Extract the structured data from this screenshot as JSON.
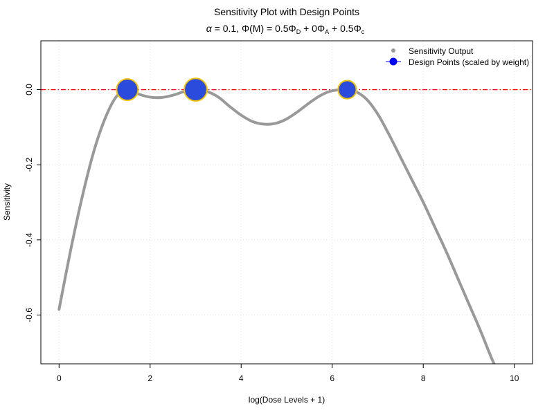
{
  "chart_data": {
    "type": "scatter",
    "title": "Sensitivity Plot with Design Points",
    "subtitle": {
      "alpha_symbol": "α",
      "alpha_text": " = 0.1, ",
      "phi_m": "Φ(M)",
      "equals": " = 0.5",
      "phi": "Φ",
      "sub_d": "D",
      "plus_a": " + 0",
      "sub_a": "A",
      "plus_c": " + 0.5",
      "sub_c": "c"
    },
    "xlabel": "log(Dose Levels + 1)",
    "ylabel": "Sensitivity",
    "xlim": [
      -0.4,
      10.4
    ],
    "ylim": [
      -0.73,
      0.13
    ],
    "x_ticks": [
      0,
      2,
      4,
      6,
      8,
      10
    ],
    "x_tick_labels": [
      "0",
      "2",
      "4",
      "6",
      "8",
      "10"
    ],
    "y_ticks": [
      0.0,
      -0.2,
      -0.4,
      -0.6
    ],
    "y_tick_labels": [
      "0.0",
      "-0.2",
      "-0.4",
      "-0.6"
    ],
    "grid": true,
    "legend_position": "top-right",
    "reference_line": {
      "y": 0,
      "color": "#ff0000",
      "style": "dash-dot"
    },
    "series": [
      {
        "name": "Sensitivity Output",
        "kind": "curve",
        "color": "#999999",
        "x": [
          0,
          0.25,
          0.5,
          0.75,
          1.0,
          1.25,
          1.5,
          1.75,
          2.0,
          2.25,
          2.5,
          2.75,
          3.0,
          3.25,
          3.5,
          3.75,
          4.0,
          4.25,
          4.5,
          4.75,
          5.0,
          5.25,
          5.5,
          5.75,
          6.0,
          6.33,
          6.5,
          6.75,
          7.0,
          7.25,
          7.5,
          7.75,
          8.0,
          8.25,
          8.5,
          8.75,
          9.0,
          9.25,
          9.5,
          9.6
        ],
        "y": [
          -0.585,
          -0.43,
          -0.29,
          -0.17,
          -0.08,
          -0.02,
          0.0,
          -0.012,
          -0.02,
          -0.021,
          -0.015,
          -0.005,
          0.0,
          -0.005,
          -0.02,
          -0.045,
          -0.068,
          -0.085,
          -0.092,
          -0.09,
          -0.078,
          -0.058,
          -0.035,
          -0.015,
          -0.003,
          0.0,
          -0.004,
          -0.025,
          -0.065,
          -0.12,
          -0.18,
          -0.24,
          -0.3,
          -0.365,
          -0.43,
          -0.5,
          -0.57,
          -0.64,
          -0.715,
          -0.74
        ]
      },
      {
        "name": "Design Points (scaled by weight)",
        "kind": "points",
        "fill": "#2b4bdc",
        "stroke": "#f5c400",
        "x": [
          1.5,
          3.0,
          6.33
        ],
        "y": [
          0.0,
          0.0,
          0.0
        ],
        "weight": [
          0.35,
          0.38,
          0.27
        ]
      }
    ]
  }
}
